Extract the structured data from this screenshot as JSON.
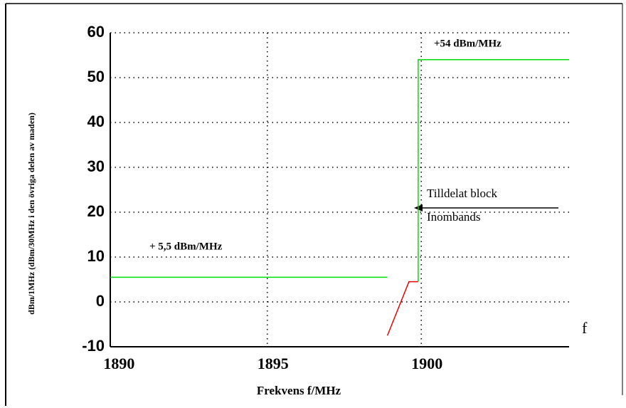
{
  "chart_data": {
    "type": "line",
    "ylabel": "dBm/1MHz (dBm/30MHz i den övriga delen av maden)",
    "xlabel": "Frekvens f/MHz",
    "annotations": [
      "+54 dBm/MHz",
      "+ 5,5 dBm/MHz",
      "Tilldelat block",
      "Inombands",
      "f"
    ],
    "xlim": [
      1889.9,
      1904.8
    ],
    "xticks": [
      1890,
      1895,
      1900
    ],
    "ylim": [
      -10,
      60
    ],
    "yticks": [
      -10,
      0,
      10,
      20,
      30,
      40,
      50,
      60
    ],
    "grid": true,
    "series": [
      {
        "color": "#00dd00",
        "x": [
          1889.9,
          1898.9
        ],
        "values": [
          5.5,
          5.5
        ]
      },
      {
        "color": "#ee0000",
        "x": [
          1898.9,
          1899.6,
          1899.9
        ],
        "values": [
          -7.5,
          4.5,
          4.5
        ]
      },
      {
        "color": "#00dd00",
        "x": [
          1899.9,
          1899.9,
          1904.8
        ],
        "values": [
          4.5,
          54,
          54
        ]
      }
    ]
  }
}
